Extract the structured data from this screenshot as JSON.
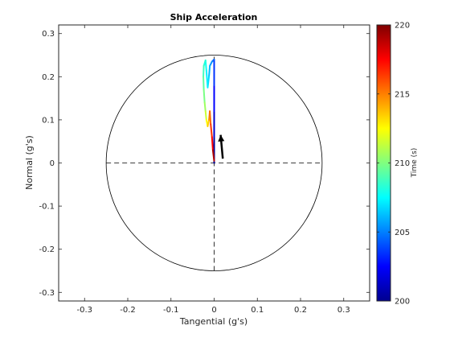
{
  "chart_data": {
    "type": "line",
    "title": "Ship Acceleration",
    "xlabel": "Tangential  (g's)",
    "ylabel": "Normal  (g's)",
    "xlim": [
      -0.36,
      0.36
    ],
    "ylim": [
      -0.32,
      0.32
    ],
    "xticks": [
      -0.3,
      -0.2,
      -0.1,
      0,
      0.1,
      0.2,
      0.3
    ],
    "xtick_labels": [
      "-0.3",
      "-0.2",
      "-0.1",
      "0",
      "0.1",
      "0.2",
      "0.3"
    ],
    "yticks": [
      -0.3,
      -0.2,
      -0.1,
      0,
      0.1,
      0.2,
      0.3
    ],
    "ytick_labels": [
      "-0.3",
      "-0.2",
      "-0.1",
      "0",
      "0.1",
      "0.2",
      "0.3"
    ],
    "grid": false,
    "reference_circle_radius": 0.25,
    "reference_axes": "dashed",
    "trajectory": {
      "name": "",
      "points": [
        {
          "x": 0.0,
          "y": 0.0,
          "t": 200
        },
        {
          "x": 0.0,
          "y": 0.06,
          "t": 201
        },
        {
          "x": 0.0,
          "y": 0.12,
          "t": 202
        },
        {
          "x": 0.0,
          "y": 0.18,
          "t": 203
        },
        {
          "x": 0.0,
          "y": 0.24,
          "t": 204
        },
        {
          "x": -0.005,
          "y": 0.235,
          "t": 205
        },
        {
          "x": -0.01,
          "y": 0.225,
          "t": 205.8
        },
        {
          "x": -0.012,
          "y": 0.2,
          "t": 206.5
        },
        {
          "x": -0.015,
          "y": 0.175,
          "t": 207
        },
        {
          "x": -0.018,
          "y": 0.215,
          "t": 207.5
        },
        {
          "x": -0.02,
          "y": 0.238,
          "t": 208
        },
        {
          "x": -0.024,
          "y": 0.225,
          "t": 208.5
        },
        {
          "x": -0.025,
          "y": 0.2,
          "t": 209
        },
        {
          "x": -0.024,
          "y": 0.17,
          "t": 209.6
        },
        {
          "x": -0.022,
          "y": 0.14,
          "t": 210.2
        },
        {
          "x": -0.02,
          "y": 0.12,
          "t": 211
        },
        {
          "x": -0.018,
          "y": 0.1,
          "t": 212
        },
        {
          "x": -0.015,
          "y": 0.085,
          "t": 213
        },
        {
          "x": -0.012,
          "y": 0.1,
          "t": 214
        },
        {
          "x": -0.01,
          "y": 0.12,
          "t": 215
        },
        {
          "x": -0.008,
          "y": 0.09,
          "t": 216
        },
        {
          "x": -0.005,
          "y": 0.06,
          "t": 217
        },
        {
          "x": -0.003,
          "y": 0.03,
          "t": 218
        },
        {
          "x": 0.0,
          "y": 0.005,
          "t": 220
        }
      ]
    },
    "arrow": {
      "x_from": 0.02,
      "y_from": 0.01,
      "x_to": 0.015,
      "y_to": 0.065,
      "color": "#000000"
    },
    "colorbar": {
      "label": "Time  (s)",
      "range": [
        200,
        220
      ],
      "ticks": [
        200,
        205,
        210,
        215,
        220
      ],
      "tick_labels": [
        "200",
        "205",
        "210",
        "215",
        "220"
      ],
      "colormap": "jet"
    }
  }
}
